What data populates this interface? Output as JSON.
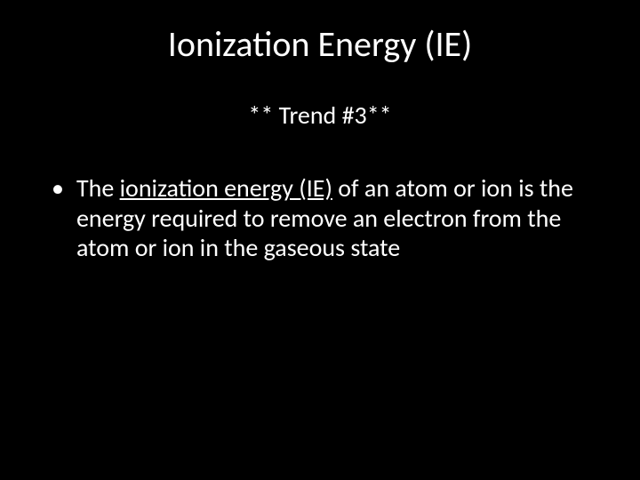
{
  "slide": {
    "background_color": "#000000",
    "text_color": "#ffffff",
    "title": {
      "text": "Ionization Energy (IE)",
      "fontsize": 40,
      "fontweight": 400
    },
    "subtitle": {
      "text": "** Trend #3**",
      "fontsize": 28,
      "fontweight": 400
    },
    "bullet": {
      "pre_text": "The ",
      "underlined_text": "ionization energy (IE)",
      "post_text": " of an atom or ion is the energy required to remove an electron from the atom or ion in the gaseous state",
      "fontsize": 28,
      "fontweight": 400,
      "line_height": 1.2
    }
  }
}
